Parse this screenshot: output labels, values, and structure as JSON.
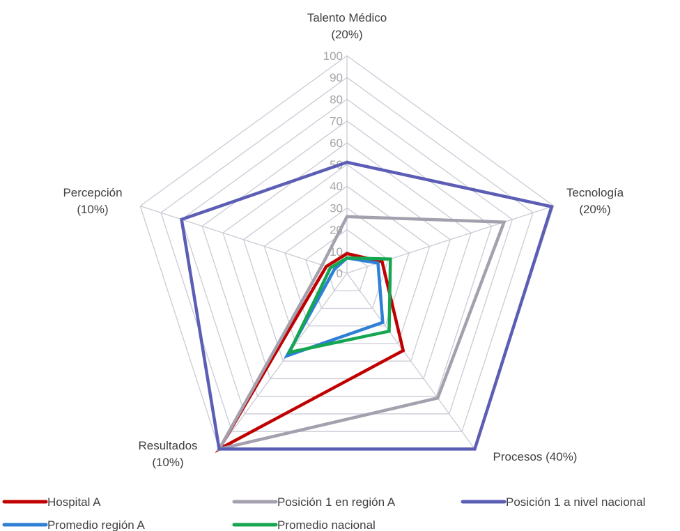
{
  "chart_data": {
    "type": "radar",
    "title": "",
    "axes": [
      {
        "lines": [
          "Talento Médico",
          "(20%)"
        ]
      },
      {
        "lines": [
          "Tecnología",
          "(20%)"
        ]
      },
      {
        "lines": [
          "Procesos (40%)"
        ]
      },
      {
        "lines": [
          "Resultados",
          "(10%)"
        ]
      },
      {
        "lines": [
          "Percepción",
          "(10%)"
        ]
      }
    ],
    "range": [
      0,
      100
    ],
    "ticks": [
      "0",
      "10",
      "20",
      "30",
      "40",
      "50",
      "60",
      "70",
      "80",
      "90",
      "100"
    ],
    "grid": true,
    "legend_position": "bottom",
    "series": [
      {
        "name": "Hospital A",
        "color": "#c00000",
        "values": [
          9,
          17,
          44,
          100,
          10
        ]
      },
      {
        "name": "Posición 1 en región A",
        "color": "#a5a0ae",
        "values": [
          26,
          76,
          71,
          100,
          12
        ]
      },
      {
        "name": "Posición 1 a nivel nacional",
        "color": "#5b5eb4",
        "values": [
          51,
          99,
          100,
          100,
          80
        ]
      },
      {
        "name": "Promedio región A",
        "color": "#2e7fd6",
        "values": [
          7,
          15,
          28,
          47,
          6
        ]
      },
      {
        "name": "Promedio nacional",
        "color": "#14a650",
        "values": [
          7,
          21,
          33,
          45,
          8
        ]
      }
    ]
  }
}
